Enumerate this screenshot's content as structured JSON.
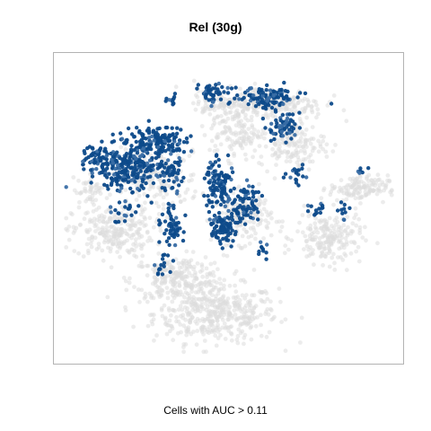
{
  "chart_data": {
    "type": "scatter",
    "title": "Rel (30g)",
    "caption": "Cells with AUC > 0.11",
    "axes_visible": false,
    "grid": false,
    "legend": "none",
    "colors": {
      "background_cells": "#dcdcdc",
      "active_cells": "#0d4a8a",
      "active_cells_light": "#3a6ea5",
      "panel_border": "#b3b3b3"
    },
    "xlim": [
      0,
      100
    ],
    "ylim": [
      0,
      100
    ],
    "series": [
      {
        "role": "background",
        "clusters": [
          {
            "cx": 46,
            "cy": 14,
            "rx": 17,
            "ry": 9,
            "n": 420
          },
          {
            "cx": 35,
            "cy": 26,
            "rx": 13,
            "ry": 7,
            "n": 240
          },
          {
            "cx": 15,
            "cy": 42,
            "rx": 11,
            "ry": 8,
            "n": 230
          },
          {
            "cx": 28,
            "cy": 60,
            "rx": 12,
            "ry": 9,
            "n": 190
          },
          {
            "cx": 54,
            "cy": 47,
            "rx": 8,
            "ry": 8,
            "n": 160
          },
          {
            "cx": 80,
            "cy": 40,
            "rx": 9,
            "ry": 8,
            "n": 200
          },
          {
            "cx": 89,
            "cy": 57,
            "rx": 8,
            "ry": 4,
            "n": 130
          },
          {
            "cx": 52,
            "cy": 76,
            "rx": 7,
            "ry": 8,
            "n": 120
          },
          {
            "cx": 62,
            "cy": 86,
            "rx": 15,
            "ry": 5,
            "n": 240
          },
          {
            "cx": 69,
            "cy": 72,
            "rx": 9,
            "ry": 7,
            "n": 150
          },
          {
            "cx": 45,
            "cy": 86,
            "rx": 5,
            "ry": 4,
            "n": 60
          },
          {
            "cx": 8,
            "cy": 56,
            "rx": 4,
            "ry": 5,
            "n": 45
          }
        ]
      },
      {
        "role": "auc_above_threshold",
        "clusters": [
          {
            "cx": 20,
            "cy": 64,
            "rx": 11,
            "ry": 7,
            "n": 260
          },
          {
            "cx": 28,
            "cy": 73,
            "rx": 8,
            "ry": 5,
            "n": 160
          },
          {
            "cx": 10,
            "cy": 68,
            "rx": 4,
            "ry": 3,
            "n": 45
          },
          {
            "cx": 47,
            "cy": 58,
            "rx": 4,
            "ry": 7,
            "n": 110
          },
          {
            "cx": 49,
            "cy": 44,
            "rx": 5,
            "ry": 5,
            "n": 90
          },
          {
            "cx": 55,
            "cy": 52,
            "rx": 3,
            "ry": 6,
            "n": 70
          },
          {
            "cx": 33,
            "cy": 44,
            "rx": 3,
            "ry": 5,
            "n": 60
          },
          {
            "cx": 45,
            "cy": 90,
            "rx": 4,
            "ry": 3,
            "n": 45
          },
          {
            "cx": 62,
            "cy": 88,
            "rx": 8,
            "ry": 4,
            "n": 110
          },
          {
            "cx": 66,
            "cy": 78,
            "rx": 5,
            "ry": 4,
            "n": 60
          },
          {
            "cx": 32,
            "cy": 61,
            "rx": 4,
            "ry": 5,
            "n": 45
          },
          {
            "cx": 70,
            "cy": 62,
            "rx": 3,
            "ry": 3,
            "n": 18
          },
          {
            "cx": 76,
            "cy": 50,
            "rx": 3,
            "ry": 3,
            "n": 14
          },
          {
            "cx": 31,
            "cy": 30,
            "rx": 3,
            "ry": 3,
            "n": 16
          },
          {
            "cx": 18,
            "cy": 49,
            "rx": 4,
            "ry": 3,
            "n": 20
          },
          {
            "cx": 33,
            "cy": 87,
            "rx": 2,
            "ry": 2,
            "n": 10
          },
          {
            "cx": 84,
            "cy": 50,
            "rx": 2,
            "ry": 3,
            "n": 10
          },
          {
            "cx": 60,
            "cy": 36,
            "rx": 2,
            "ry": 3,
            "n": 10
          },
          {
            "cx": 90,
            "cy": 63,
            "rx": 2,
            "ry": 2,
            "n": 6
          }
        ]
      }
    ]
  }
}
